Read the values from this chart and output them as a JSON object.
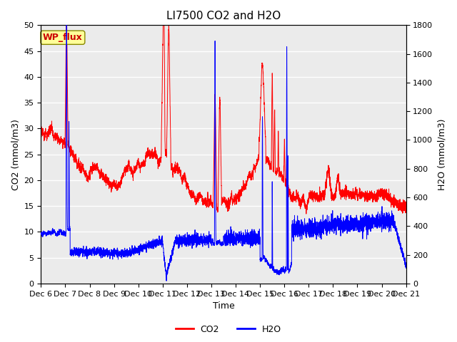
{
  "title": "LI7500 CO2 and H2O",
  "xlabel": "Time",
  "ylabel_left": "CO2 (mmol/m3)",
  "ylabel_right": "H2O (mmol/m3)",
  "ylim_left": [
    0,
    50
  ],
  "ylim_right": [
    0,
    1800
  ],
  "xtick_labels": [
    "Dec 6",
    "Dec 7",
    "Dec 8",
    "Dec 9",
    "Dec 10",
    "Dec 11",
    "Dec 12",
    "Dec 13",
    "Dec 14",
    "Dec 15",
    "Dec 16",
    "Dec 17",
    "Dec 18",
    "Dec 19",
    "Dec 20",
    "Dec 21"
  ],
  "yticks_left": [
    0,
    5,
    10,
    15,
    20,
    25,
    30,
    35,
    40,
    45,
    50
  ],
  "yticks_right": [
    0,
    200,
    400,
    600,
    800,
    1000,
    1200,
    1400,
    1600,
    1800
  ],
  "annotation_text": "WP_flux",
  "annotation_color": "#cc0000",
  "annotation_bg": "#ffff99",
  "annotation_border": "#888800",
  "co2_color": "#ff0000",
  "h2o_color": "#0000ff",
  "plot_bg_color": "#ebebeb",
  "grid_color": "#ffffff",
  "legend_co2": "CO2",
  "legend_h2o": "H2O",
  "title_fontsize": 11,
  "axis_fontsize": 9,
  "tick_fontsize": 8,
  "n_days": 15,
  "n_pts_per_day": 288
}
